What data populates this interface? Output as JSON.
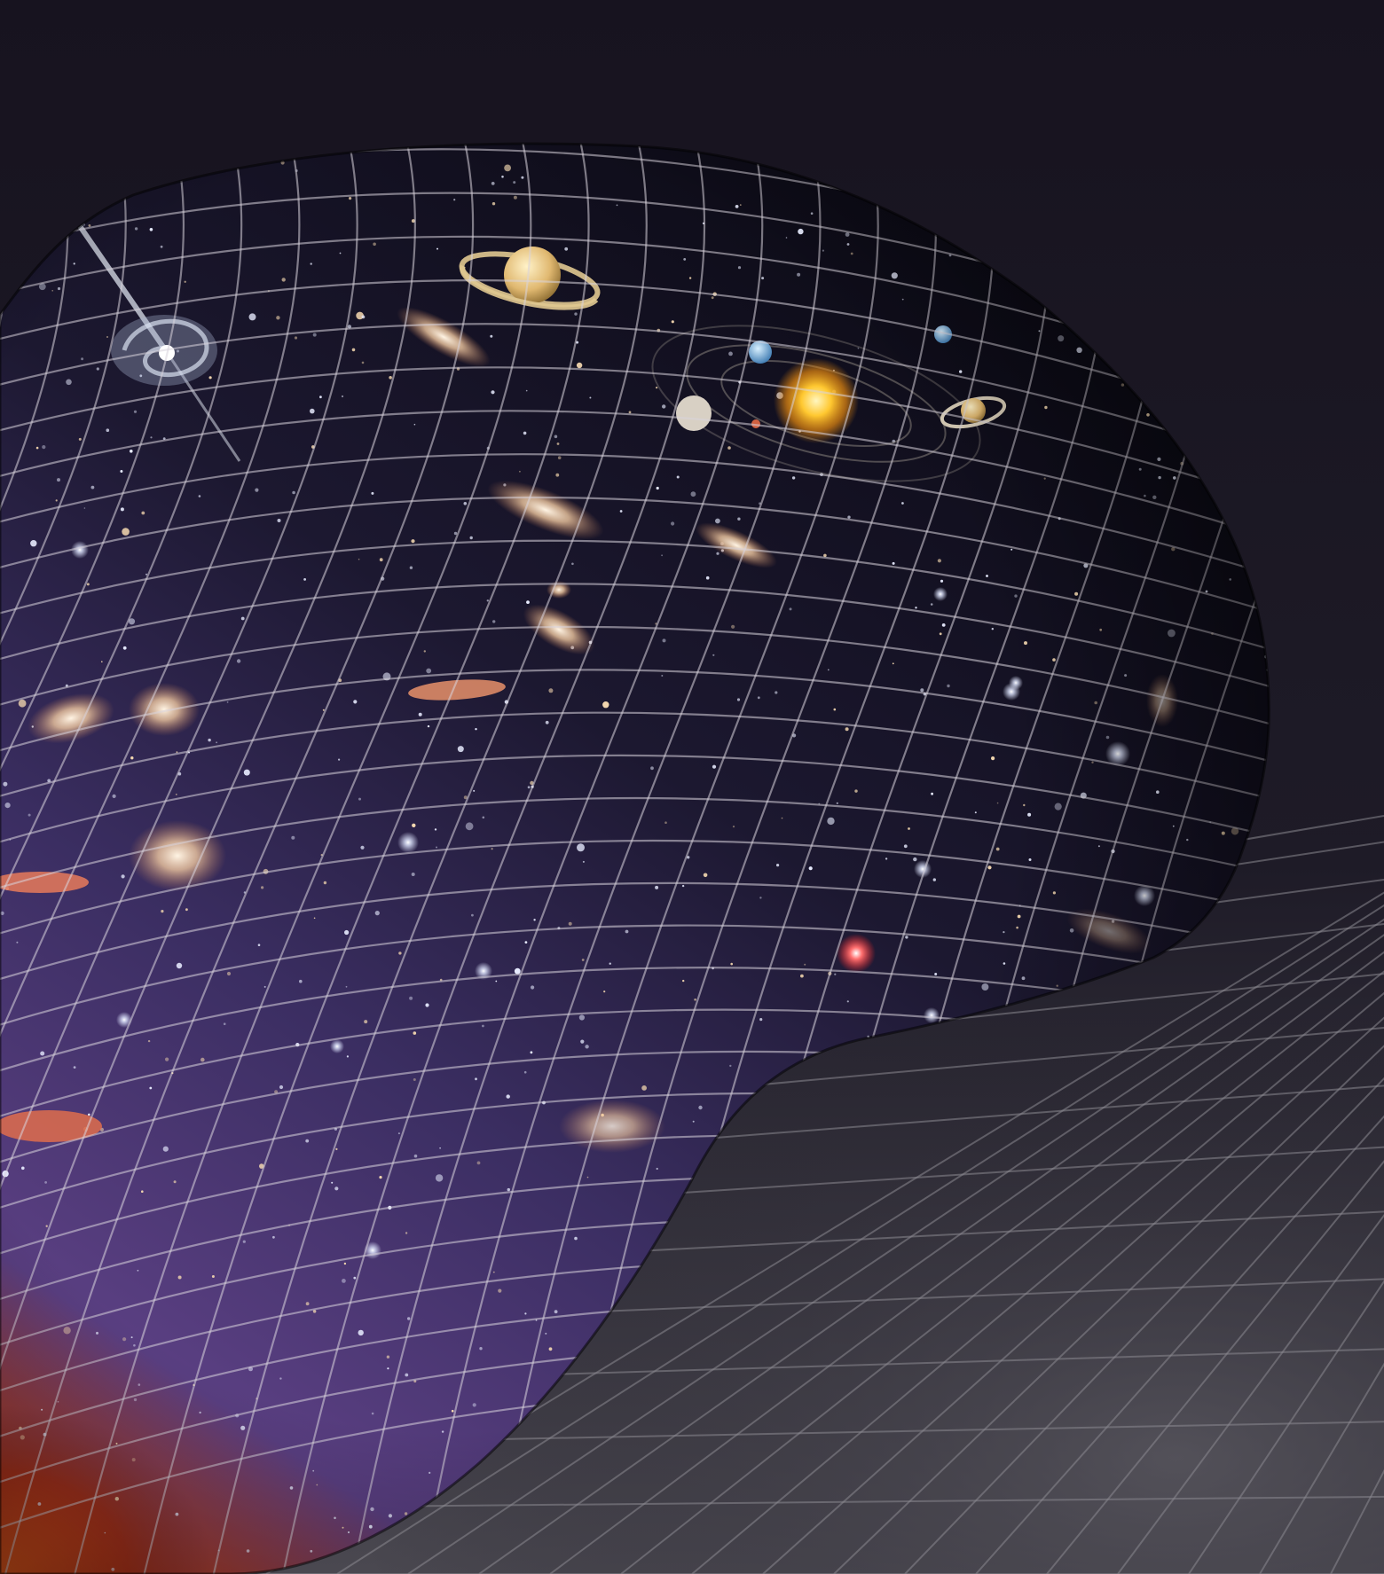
{
  "image": {
    "subject": "spacetime-surface-illustration",
    "colors": {
      "background_top": "#17131f",
      "background_bottom": "#4a4850",
      "floor_grid": "#8a8890",
      "surface_grid": "#d8d4dc",
      "space_deep": "#0c0a16",
      "space_purple": "#4b3a7a",
      "cmb_orange": "#e0501a",
      "sun_yellow": "#ffc830",
      "galaxy_glow": "#f0d0b0"
    },
    "icons": [
      "saturn-icon",
      "sun-icon",
      "planet-icon",
      "spiral-galaxy-icon",
      "galaxy-icon",
      "star-icon"
    ]
  }
}
